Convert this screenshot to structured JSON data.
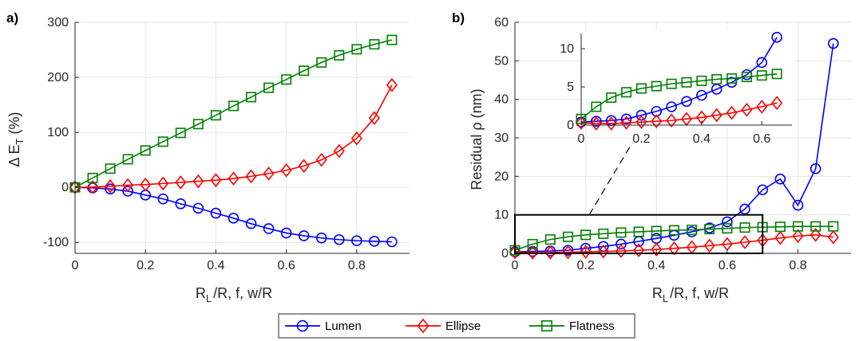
{
  "chart_data": [
    {
      "type": "line",
      "panel_label": "a)",
      "xlabel": "R_L /R, f, w/R",
      "ylabel": "Δ E_T (%)",
      "xlim": [
        0,
        0.95
      ],
      "ylim": [
        -120,
        300
      ],
      "x_ticks": [
        0,
        0.2,
        0.4,
        0.6,
        0.8
      ],
      "x_tick_labels": [
        "0",
        "0.2",
        "0.4",
        "0.6",
        "0.8"
      ],
      "y_ticks": [
        -100,
        0,
        100,
        200,
        300
      ],
      "y_tick_labels": [
        "-100",
        "0",
        "100",
        "200",
        "300"
      ],
      "grid": true,
      "series": [
        {
          "name": "Lumen",
          "color": "#0000ff",
          "marker": "circle",
          "x": [
            0,
            0.05,
            0.1,
            0.15,
            0.2,
            0.25,
            0.3,
            0.35,
            0.4,
            0.45,
            0.5,
            0.55,
            0.6,
            0.65,
            0.7,
            0.75,
            0.8,
            0.85,
            0.9
          ],
          "y": [
            0,
            -1,
            -3,
            -7,
            -14,
            -21,
            -30,
            -38,
            -47,
            -56,
            -66,
            -75,
            -83,
            -88,
            -92,
            -95,
            -97,
            -98,
            -99
          ]
        },
        {
          "name": "Ellipse",
          "color": "#ff0000",
          "marker": "diamond",
          "x": [
            0,
            0.05,
            0.1,
            0.15,
            0.2,
            0.25,
            0.3,
            0.35,
            0.4,
            0.45,
            0.5,
            0.55,
            0.6,
            0.65,
            0.7,
            0.75,
            0.8,
            0.85,
            0.9
          ],
          "y": [
            0,
            0.5,
            2,
            4,
            5,
            7,
            9,
            11,
            13,
            16,
            20,
            25,
            31,
            39,
            50,
            66,
            89,
            126,
            186
          ]
        },
        {
          "name": "Flatness",
          "color": "#007f00",
          "marker": "square",
          "x": [
            0,
            0.05,
            0.1,
            0.15,
            0.2,
            0.25,
            0.3,
            0.35,
            0.4,
            0.45,
            0.5,
            0.55,
            0.6,
            0.65,
            0.7,
            0.75,
            0.8,
            0.85,
            0.9
          ],
          "y": [
            0,
            17,
            34,
            51,
            67,
            83,
            99,
            115,
            131,
            148,
            164,
            181,
            196,
            212,
            227,
            240,
            251,
            260,
            268
          ]
        }
      ]
    },
    {
      "type": "line",
      "panel_label": "b)",
      "xlabel": "R_L /R, f, w/R",
      "ylabel": "Residual ρ (nm)",
      "xlim": [
        0,
        0.95
      ],
      "ylim": [
        0,
        60
      ],
      "x_ticks": [
        0,
        0.2,
        0.4,
        0.6,
        0.8
      ],
      "x_tick_labels": [
        "0",
        "0.2",
        "0.4",
        "0.6",
        "0.8"
      ],
      "y_ticks": [
        0,
        10,
        20,
        30,
        40,
        50,
        60
      ],
      "y_tick_labels": [
        "0",
        "10",
        "20",
        "30",
        "40",
        "50",
        "60"
      ],
      "grid": true,
      "zoom_box": {
        "x": [
          0,
          0.7
        ],
        "y": [
          0,
          10
        ]
      },
      "series": [
        {
          "name": "Lumen",
          "color": "#0000ff",
          "marker": "circle",
          "x": [
            0,
            0.05,
            0.1,
            0.15,
            0.2,
            0.25,
            0.3,
            0.35,
            0.4,
            0.45,
            0.5,
            0.55,
            0.6,
            0.65,
            0.7,
            0.75,
            0.8,
            0.85,
            0.9
          ],
          "y": [
            0.4,
            0.5,
            0.6,
            0.8,
            1.3,
            1.8,
            2.4,
            3.1,
            3.9,
            4.7,
            5.6,
            6.6,
            8.2,
            11.5,
            16.5,
            19.3,
            12.5,
            22,
            54.5
          ]
        },
        {
          "name": "Ellipse",
          "color": "#ff0000",
          "marker": "diamond",
          "x": [
            0,
            0.05,
            0.1,
            0.15,
            0.2,
            0.25,
            0.3,
            0.35,
            0.4,
            0.45,
            0.5,
            0.55,
            0.6,
            0.65,
            0.7,
            0.75,
            0.8,
            0.85,
            0.9
          ],
          "y": [
            0.3,
            0.2,
            0.2,
            0.3,
            0.4,
            0.5,
            0.6,
            0.8,
            1.0,
            1.3,
            1.6,
            2.0,
            2.4,
            2.9,
            3.4,
            4.0,
            4.5,
            4.8,
            4.2
          ]
        },
        {
          "name": "Flatness",
          "color": "#007f00",
          "marker": "square",
          "x": [
            0,
            0.05,
            0.1,
            0.15,
            0.2,
            0.25,
            0.3,
            0.35,
            0.4,
            0.45,
            0.5,
            0.55,
            0.6,
            0.65,
            0.7,
            0.75,
            0.8,
            0.85,
            0.9
          ],
          "y": [
            0.8,
            2.4,
            3.6,
            4.3,
            4.8,
            5.1,
            5.4,
            5.6,
            5.8,
            6.0,
            6.1,
            6.3,
            6.5,
            6.7,
            6.8,
            6.9,
            7.0,
            7.0,
            7.0
          ]
        }
      ]
    },
    {
      "type": "line",
      "role": "inset",
      "xlim": [
        0,
        0.7
      ],
      "ylim": [
        0,
        12
      ],
      "x_ticks": [
        0,
        0.2,
        0.4,
        0.6
      ],
      "x_tick_labels": [
        "0",
        "0.2",
        "0.4",
        "0.6"
      ],
      "y_ticks": [
        0,
        5,
        10
      ],
      "y_tick_labels": [
        "0",
        "5",
        "10"
      ],
      "grid": false,
      "series": [
        {
          "name": "Lumen",
          "color": "#0000ff",
          "marker": "circle",
          "x": [
            0,
            0.05,
            0.1,
            0.15,
            0.2,
            0.25,
            0.3,
            0.35,
            0.4,
            0.45,
            0.5,
            0.55,
            0.6,
            0.65
          ],
          "y": [
            0.4,
            0.5,
            0.6,
            0.8,
            1.3,
            1.8,
            2.4,
            3.1,
            3.9,
            4.7,
            5.6,
            6.6,
            8.2,
            11.5
          ]
        },
        {
          "name": "Ellipse",
          "color": "#ff0000",
          "marker": "diamond",
          "x": [
            0,
            0.05,
            0.1,
            0.15,
            0.2,
            0.25,
            0.3,
            0.35,
            0.4,
            0.45,
            0.5,
            0.55,
            0.6,
            0.65
          ],
          "y": [
            0.3,
            0.2,
            0.2,
            0.3,
            0.4,
            0.5,
            0.6,
            0.8,
            1.0,
            1.3,
            1.6,
            2.0,
            2.4,
            2.9
          ]
        },
        {
          "name": "Flatness",
          "color": "#007f00",
          "marker": "square",
          "x": [
            0,
            0.05,
            0.1,
            0.15,
            0.2,
            0.25,
            0.3,
            0.35,
            0.4,
            0.45,
            0.5,
            0.55,
            0.6,
            0.65
          ],
          "y": [
            0.8,
            2.4,
            3.6,
            4.3,
            4.8,
            5.1,
            5.4,
            5.6,
            5.8,
            6.0,
            6.1,
            6.3,
            6.5,
            6.7
          ]
        }
      ]
    }
  ],
  "labels": {
    "panel_a": "a)",
    "panel_b": "b)",
    "ylabel_a_prefix": "Δ E",
    "ylabel_a_sub": "T",
    "ylabel_a_suffix": " (%)",
    "ylabel_b": "Residual ρ (nm)",
    "xlabel_prefix": "R",
    "xlabel_sub": "L",
    "xlabel_suffix": "/R, f, w/R"
  },
  "legend": {
    "placement": "bottom-center",
    "items": [
      {
        "name": "Lumen",
        "color": "#0000ff",
        "marker": "circle"
      },
      {
        "name": "Ellipse",
        "color": "#ff0000",
        "marker": "diamond"
      },
      {
        "name": "Flatness",
        "color": "#007f00",
        "marker": "square"
      }
    ]
  }
}
